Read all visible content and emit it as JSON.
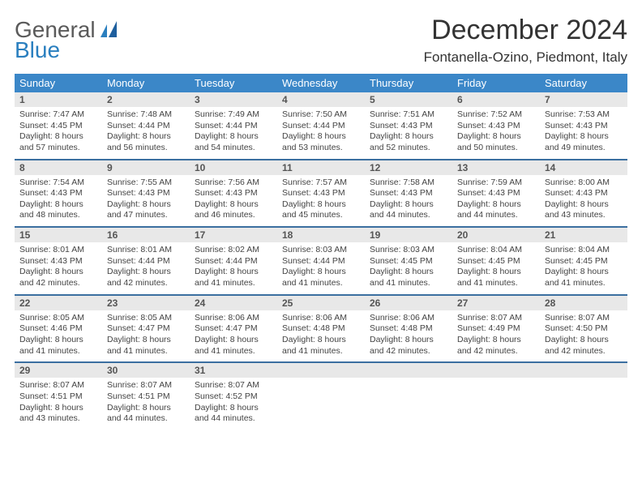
{
  "brand": {
    "name_part1": "General",
    "name_part2": "Blue"
  },
  "title": "December 2024",
  "location": "Fontanella-Ozino, Piedmont, Italy",
  "colors": {
    "header_bg": "#3b87c8",
    "header_text": "#ffffff",
    "daynum_bg": "#e8e8e8",
    "week_divider": "#3b6fa0",
    "brand_gray": "#5a5a5a",
    "brand_blue": "#2a7fbf"
  },
  "weekdays": [
    "Sunday",
    "Monday",
    "Tuesday",
    "Wednesday",
    "Thursday",
    "Friday",
    "Saturday"
  ],
  "weeks": [
    {
      "days": [
        {
          "num": "1",
          "sunrise": "Sunrise: 7:47 AM",
          "sunset": "Sunset: 4:45 PM",
          "daylight": "Daylight: 8 hours and 57 minutes."
        },
        {
          "num": "2",
          "sunrise": "Sunrise: 7:48 AM",
          "sunset": "Sunset: 4:44 PM",
          "daylight": "Daylight: 8 hours and 56 minutes."
        },
        {
          "num": "3",
          "sunrise": "Sunrise: 7:49 AM",
          "sunset": "Sunset: 4:44 PM",
          "daylight": "Daylight: 8 hours and 54 minutes."
        },
        {
          "num": "4",
          "sunrise": "Sunrise: 7:50 AM",
          "sunset": "Sunset: 4:44 PM",
          "daylight": "Daylight: 8 hours and 53 minutes."
        },
        {
          "num": "5",
          "sunrise": "Sunrise: 7:51 AM",
          "sunset": "Sunset: 4:43 PM",
          "daylight": "Daylight: 8 hours and 52 minutes."
        },
        {
          "num": "6",
          "sunrise": "Sunrise: 7:52 AM",
          "sunset": "Sunset: 4:43 PM",
          "daylight": "Daylight: 8 hours and 50 minutes."
        },
        {
          "num": "7",
          "sunrise": "Sunrise: 7:53 AM",
          "sunset": "Sunset: 4:43 PM",
          "daylight": "Daylight: 8 hours and 49 minutes."
        }
      ]
    },
    {
      "days": [
        {
          "num": "8",
          "sunrise": "Sunrise: 7:54 AM",
          "sunset": "Sunset: 4:43 PM",
          "daylight": "Daylight: 8 hours and 48 minutes."
        },
        {
          "num": "9",
          "sunrise": "Sunrise: 7:55 AM",
          "sunset": "Sunset: 4:43 PM",
          "daylight": "Daylight: 8 hours and 47 minutes."
        },
        {
          "num": "10",
          "sunrise": "Sunrise: 7:56 AM",
          "sunset": "Sunset: 4:43 PM",
          "daylight": "Daylight: 8 hours and 46 minutes."
        },
        {
          "num": "11",
          "sunrise": "Sunrise: 7:57 AM",
          "sunset": "Sunset: 4:43 PM",
          "daylight": "Daylight: 8 hours and 45 minutes."
        },
        {
          "num": "12",
          "sunrise": "Sunrise: 7:58 AM",
          "sunset": "Sunset: 4:43 PM",
          "daylight": "Daylight: 8 hours and 44 minutes."
        },
        {
          "num": "13",
          "sunrise": "Sunrise: 7:59 AM",
          "sunset": "Sunset: 4:43 PM",
          "daylight": "Daylight: 8 hours and 44 minutes."
        },
        {
          "num": "14",
          "sunrise": "Sunrise: 8:00 AM",
          "sunset": "Sunset: 4:43 PM",
          "daylight": "Daylight: 8 hours and 43 minutes."
        }
      ]
    },
    {
      "days": [
        {
          "num": "15",
          "sunrise": "Sunrise: 8:01 AM",
          "sunset": "Sunset: 4:43 PM",
          "daylight": "Daylight: 8 hours and 42 minutes."
        },
        {
          "num": "16",
          "sunrise": "Sunrise: 8:01 AM",
          "sunset": "Sunset: 4:44 PM",
          "daylight": "Daylight: 8 hours and 42 minutes."
        },
        {
          "num": "17",
          "sunrise": "Sunrise: 8:02 AM",
          "sunset": "Sunset: 4:44 PM",
          "daylight": "Daylight: 8 hours and 41 minutes."
        },
        {
          "num": "18",
          "sunrise": "Sunrise: 8:03 AM",
          "sunset": "Sunset: 4:44 PM",
          "daylight": "Daylight: 8 hours and 41 minutes."
        },
        {
          "num": "19",
          "sunrise": "Sunrise: 8:03 AM",
          "sunset": "Sunset: 4:45 PM",
          "daylight": "Daylight: 8 hours and 41 minutes."
        },
        {
          "num": "20",
          "sunrise": "Sunrise: 8:04 AM",
          "sunset": "Sunset: 4:45 PM",
          "daylight": "Daylight: 8 hours and 41 minutes."
        },
        {
          "num": "21",
          "sunrise": "Sunrise: 8:04 AM",
          "sunset": "Sunset: 4:45 PM",
          "daylight": "Daylight: 8 hours and 41 minutes."
        }
      ]
    },
    {
      "days": [
        {
          "num": "22",
          "sunrise": "Sunrise: 8:05 AM",
          "sunset": "Sunset: 4:46 PM",
          "daylight": "Daylight: 8 hours and 41 minutes."
        },
        {
          "num": "23",
          "sunrise": "Sunrise: 8:05 AM",
          "sunset": "Sunset: 4:47 PM",
          "daylight": "Daylight: 8 hours and 41 minutes."
        },
        {
          "num": "24",
          "sunrise": "Sunrise: 8:06 AM",
          "sunset": "Sunset: 4:47 PM",
          "daylight": "Daylight: 8 hours and 41 minutes."
        },
        {
          "num": "25",
          "sunrise": "Sunrise: 8:06 AM",
          "sunset": "Sunset: 4:48 PM",
          "daylight": "Daylight: 8 hours and 41 minutes."
        },
        {
          "num": "26",
          "sunrise": "Sunrise: 8:06 AM",
          "sunset": "Sunset: 4:48 PM",
          "daylight": "Daylight: 8 hours and 42 minutes."
        },
        {
          "num": "27",
          "sunrise": "Sunrise: 8:07 AM",
          "sunset": "Sunset: 4:49 PM",
          "daylight": "Daylight: 8 hours and 42 minutes."
        },
        {
          "num": "28",
          "sunrise": "Sunrise: 8:07 AM",
          "sunset": "Sunset: 4:50 PM",
          "daylight": "Daylight: 8 hours and 42 minutes."
        }
      ]
    },
    {
      "days": [
        {
          "num": "29",
          "sunrise": "Sunrise: 8:07 AM",
          "sunset": "Sunset: 4:51 PM",
          "daylight": "Daylight: 8 hours and 43 minutes."
        },
        {
          "num": "30",
          "sunrise": "Sunrise: 8:07 AM",
          "sunset": "Sunset: 4:51 PM",
          "daylight": "Daylight: 8 hours and 44 minutes."
        },
        {
          "num": "31",
          "sunrise": "Sunrise: 8:07 AM",
          "sunset": "Sunset: 4:52 PM",
          "daylight": "Daylight: 8 hours and 44 minutes."
        },
        {
          "num": "",
          "sunrise": "",
          "sunset": "",
          "daylight": ""
        },
        {
          "num": "",
          "sunrise": "",
          "sunset": "",
          "daylight": ""
        },
        {
          "num": "",
          "sunrise": "",
          "sunset": "",
          "daylight": ""
        },
        {
          "num": "",
          "sunrise": "",
          "sunset": "",
          "daylight": ""
        }
      ]
    }
  ]
}
